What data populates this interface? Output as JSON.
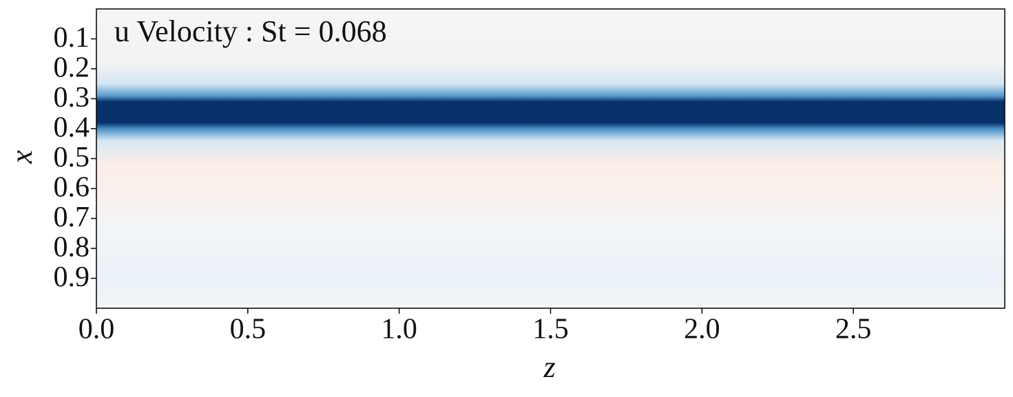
{
  "chart_data": {
    "type": "field",
    "title": "u Velocity : St = 0.068",
    "xlabel": "z",
    "ylabel": "x",
    "xlim": [
      0,
      3
    ],
    "ylim": [
      0,
      1
    ],
    "y_inverted": true,
    "xticks": [
      {
        "value": 0,
        "label": "0.0"
      },
      0.5,
      {
        "value": 1,
        "label": "1.0"
      },
      1.5,
      {
        "value": 2,
        "label": "2.0"
      },
      2.5
    ],
    "yticks": [
      0.1,
      0.2,
      0.3,
      0.4,
      0.5,
      0.6,
      0.7,
      0.8,
      0.9
    ]
  }
}
